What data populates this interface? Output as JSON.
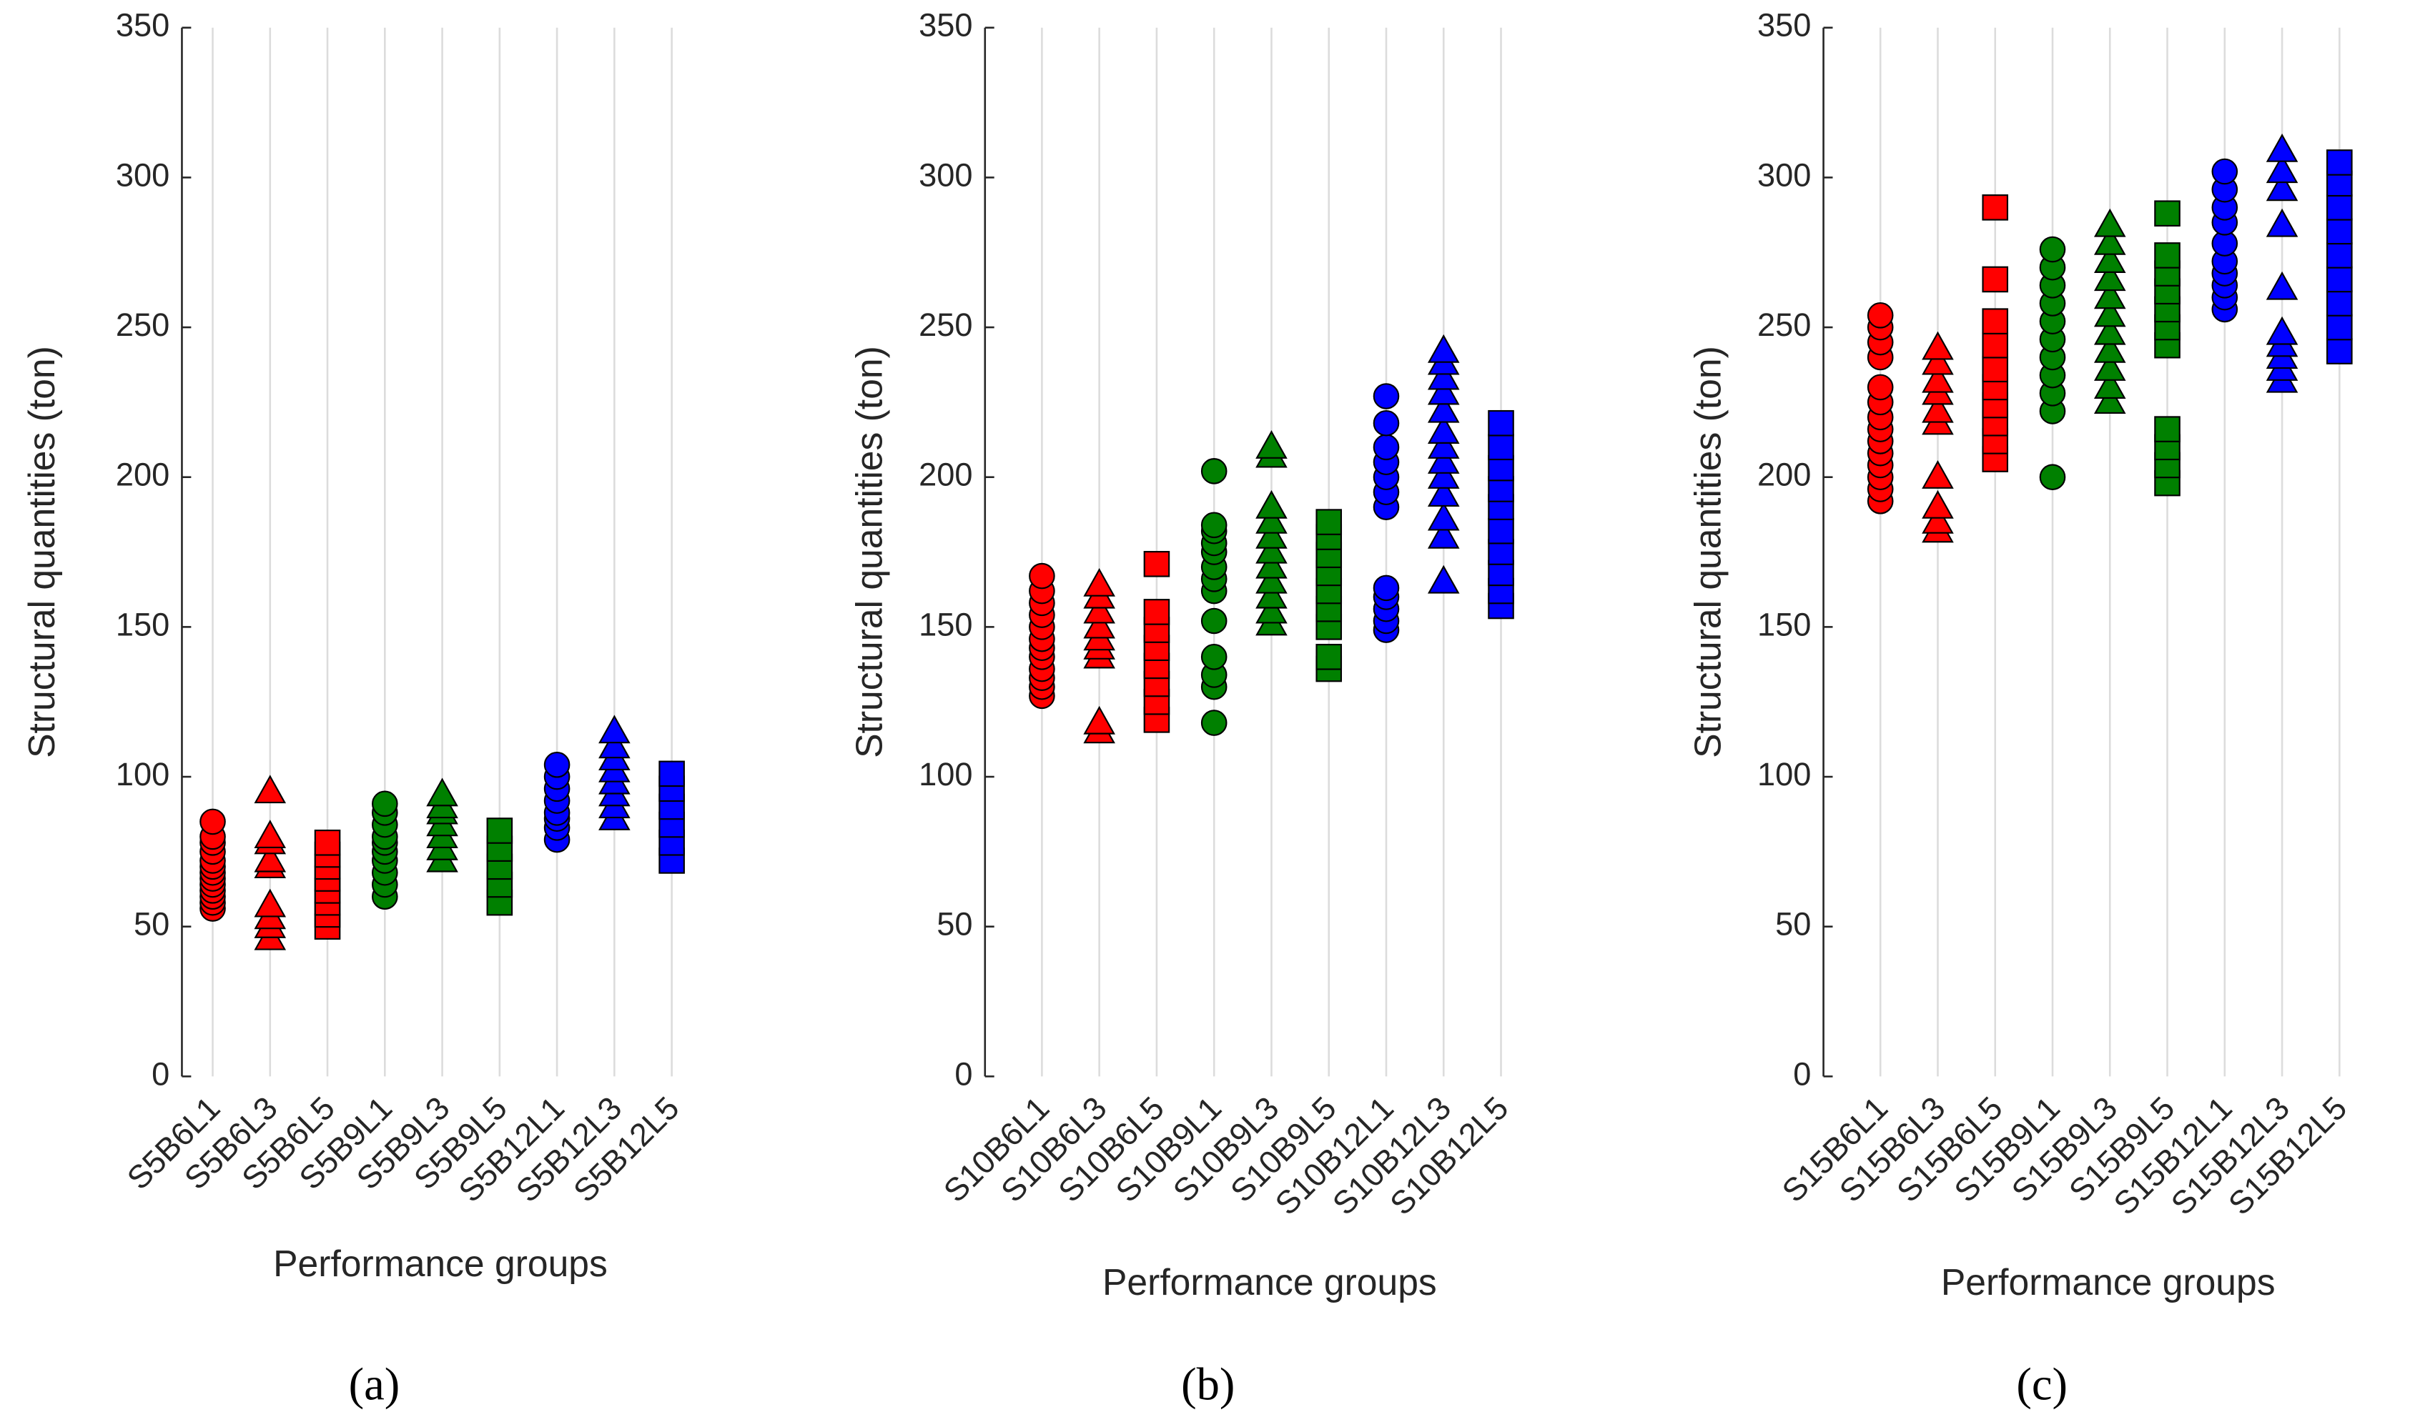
{
  "chart_data": [
    {
      "type": "scatter",
      "label": "(a)",
      "xlabel": "Performance groups",
      "ylabel": "Structural quantities (ton)",
      "ylim": [
        0,
        350
      ],
      "yticks": [
        0,
        50,
        100,
        150,
        200,
        250,
        300,
        350
      ],
      "grid": "x",
      "categories": [
        "S5B6L1",
        "S5B6L3",
        "S5B6L5",
        "S5B9L1",
        "S5B9L3",
        "S5B9L5",
        "S5B12L1",
        "S5B12L3",
        "S5B12L5"
      ],
      "markers": [
        "circle",
        "triangle",
        "square",
        "circle",
        "triangle",
        "square",
        "circle",
        "triangle",
        "square"
      ],
      "colors": [
        "#ff0000",
        "#ff0000",
        "#ff0000",
        "#008000",
        "#008000",
        "#008000",
        "#0000ff",
        "#0000ff",
        "#0000ff"
      ],
      "values": [
        [
          56,
          58,
          60,
          62,
          64,
          66,
          68,
          70,
          72,
          75,
          78,
          80,
          85
        ],
        [
          46,
          50,
          53,
          57,
          70,
          72,
          78,
          80,
          95
        ],
        [
          50,
          54,
          58,
          62,
          66,
          70,
          74,
          78
        ],
        [
          60,
          64,
          68,
          72,
          75,
          78,
          80,
          84,
          88,
          91
        ],
        [
          72,
          76,
          80,
          84,
          88,
          90,
          94
        ],
        [
          58,
          64,
          70,
          76,
          82
        ],
        [
          79,
          83,
          86,
          88,
          92,
          96,
          100,
          104
        ],
        [
          86,
          90,
          94,
          98,
          102,
          106,
          110,
          115
        ],
        [
          72,
          78,
          84,
          90,
          96,
          101
        ]
      ]
    },
    {
      "type": "scatter",
      "label": "(b)",
      "xlabel": "Performance groups",
      "ylabel": "Structural quantities (ton)",
      "ylim": [
        0,
        350
      ],
      "yticks": [
        0,
        50,
        100,
        150,
        200,
        250,
        300,
        350
      ],
      "grid": "x",
      "categories": [
        "S10B6L1",
        "S10B6L3",
        "S10B6L5",
        "S10B9L1",
        "S10B9L3",
        "S10B9L5",
        "S10B12L1",
        "S10B12L3",
        "S10B12L5"
      ],
      "markers": [
        "circle",
        "triangle",
        "square",
        "circle",
        "triangle",
        "square",
        "circle",
        "triangle",
        "square"
      ],
      "colors": [
        "#ff0000",
        "#ff0000",
        "#ff0000",
        "#008000",
        "#008000",
        "#008000",
        "#0000ff",
        "#0000ff",
        "#0000ff"
      ],
      "values": [
        [
          127,
          130,
          133,
          136,
          140,
          143,
          146,
          150,
          154,
          158,
          162,
          167
        ],
        [
          115,
          118,
          140,
          143,
          146,
          150,
          155,
          160,
          164
        ],
        [
          119,
          125,
          131,
          137,
          143,
          149,
          155,
          171
        ],
        [
          118,
          130,
          134,
          140,
          152,
          162,
          166,
          170,
          175,
          178,
          182,
          184,
          202
        ],
        [
          151,
          155,
          160,
          165,
          170,
          175,
          180,
          185,
          190,
          207,
          210
        ],
        [
          136,
          140,
          150,
          156,
          162,
          168,
          174,
          180,
          185
        ],
        [
          149,
          152,
          156,
          160,
          163,
          190,
          195,
          200,
          205,
          210,
          218,
          227
        ],
        [
          165,
          180,
          186,
          194,
          200,
          205,
          210,
          215,
          222,
          228,
          233,
          238,
          242
        ],
        [
          157,
          162,
          168,
          175,
          182,
          190,
          196,
          203,
          210,
          218
        ]
      ]
    },
    {
      "type": "scatter",
      "label": "(c)",
      "xlabel": "Performance groups",
      "ylabel": "Structural quantities (ton)",
      "ylim": [
        0,
        350
      ],
      "yticks": [
        0,
        50,
        100,
        150,
        200,
        250,
        300,
        350
      ],
      "grid": "x",
      "categories": [
        "S15B6L1",
        "S15B6L3",
        "S15B6L5",
        "S15B9L1",
        "S15B9L3",
        "S15B9L5",
        "S15B12L1",
        "S15B12L3",
        "S15B12L5"
      ],
      "markers": [
        "circle",
        "triangle",
        "square",
        "circle",
        "triangle",
        "square",
        "circle",
        "triangle",
        "square"
      ],
      "colors": [
        "#ff0000",
        "#ff0000",
        "#ff0000",
        "#008000",
        "#008000",
        "#008000",
        "#0000ff",
        "#0000ff",
        "#0000ff"
      ],
      "values": [
        [
          192,
          196,
          200,
          204,
          208,
          212,
          216,
          220,
          225,
          230,
          240,
          245,
          250,
          254
        ],
        [
          182,
          185,
          190,
          200,
          218,
          222,
          228,
          232,
          238,
          243
        ],
        [
          206,
          212,
          218,
          224,
          230,
          236,
          244,
          252,
          266,
          290
        ],
        [
          200,
          222,
          228,
          234,
          240,
          246,
          252,
          258,
          264,
          270,
          276
        ],
        [
          225,
          230,
          236,
          242,
          248,
          254,
          260,
          266,
          272,
          278,
          284
        ],
        [
          198,
          204,
          210,
          216,
          244,
          250,
          256,
          262,
          268,
          274,
          288
        ],
        [
          256,
          260,
          264,
          268,
          272,
          278,
          285,
          290,
          296,
          302
        ],
        [
          232,
          236,
          240,
          244,
          248,
          263,
          284,
          296,
          302,
          309
        ],
        [
          242,
          250,
          258,
          266,
          274,
          282,
          290,
          298,
          305
        ]
      ]
    }
  ]
}
